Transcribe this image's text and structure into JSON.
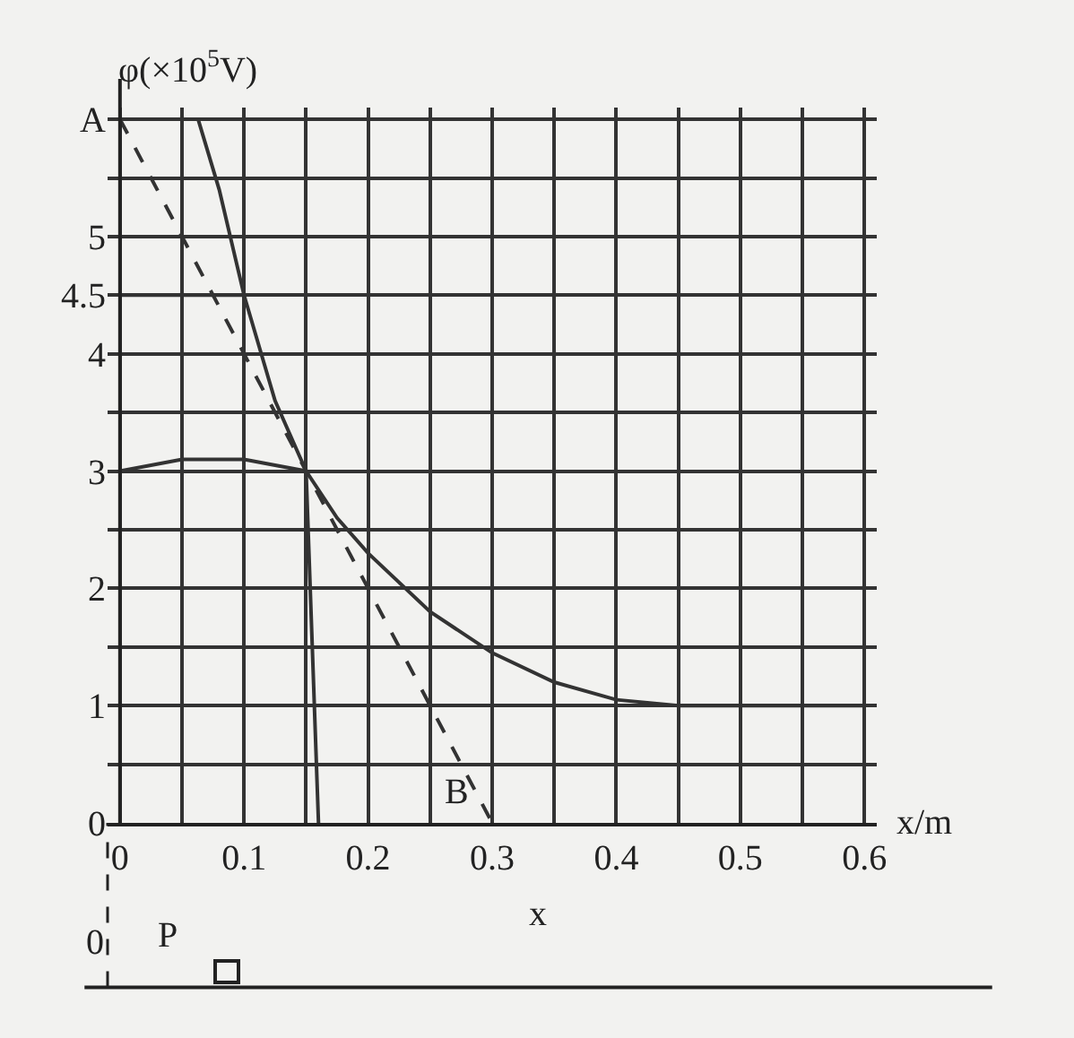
{
  "chart_data": {
    "type": "line",
    "xlabel": "x/m",
    "ylabel": "φ(×10$^{5}$V)",
    "xlim": [
      -0.01,
      0.61
    ],
    "ylim": [
      0,
      6.1
    ],
    "xticks": [
      0,
      {
        "value": 0.05,
        "label": null
      },
      0.1,
      {
        "value": 0.15,
        "label": null
      },
      0.2,
      {
        "value": 0.25,
        "label": null
      },
      0.3,
      {
        "value": 0.35,
        "label": null
      },
      0.4,
      {
        "value": 0.45,
        "label": null
      },
      0.5,
      {
        "value": 0.55,
        "label": null
      },
      0.6
    ],
    "yticks": [
      0,
      {
        "value": 0.5,
        "label": null
      },
      1,
      {
        "value": 1.5,
        "label": null
      },
      2,
      {
        "value": 2.5,
        "label": null
      },
      3,
      {
        "value": 3.5,
        "label": null
      },
      4,
      4.5,
      5,
      {
        "value": 5.5,
        "label": null
      },
      {
        "value": 6,
        "label": "A"
      }
    ],
    "grid": true,
    "marker": "none",
    "series": [
      {
        "color": "#333333",
        "line_style": "solid",
        "x": [
          0.063,
          0.08,
          0.1,
          0.125,
          0.15,
          0.175,
          0.2,
          0.25,
          0.3,
          0.35,
          0.4,
          0.45,
          0.5,
          0.6
        ],
        "values": [
          6,
          5.4,
          4.5,
          3.6,
          3.0,
          2.6,
          2.3,
          1.8,
          1.45,
          1.2,
          1.05,
          1.0,
          1.0,
          1.0
        ]
      },
      {
        "color": "#333333",
        "line_style": "dashed",
        "x": [
          0,
          0.3
        ],
        "values": [
          6,
          0
        ]
      },
      {
        "color": "#333333",
        "line_style": "solid",
        "x": [
          0,
          0.1
        ],
        "values": [
          4.5,
          4.5
        ]
      },
      {
        "color": "#333333",
        "line_style": "solid",
        "x": [
          0,
          0.05,
          0.1,
          0.15,
          0.16
        ],
        "values": [
          3,
          3.1,
          3.1,
          3,
          0
        ]
      }
    ],
    "annotations": [
      {
        "text": "B",
        "x": 0.3,
        "y": 0
      },
      "0",
      "P",
      "x"
    ]
  }
}
